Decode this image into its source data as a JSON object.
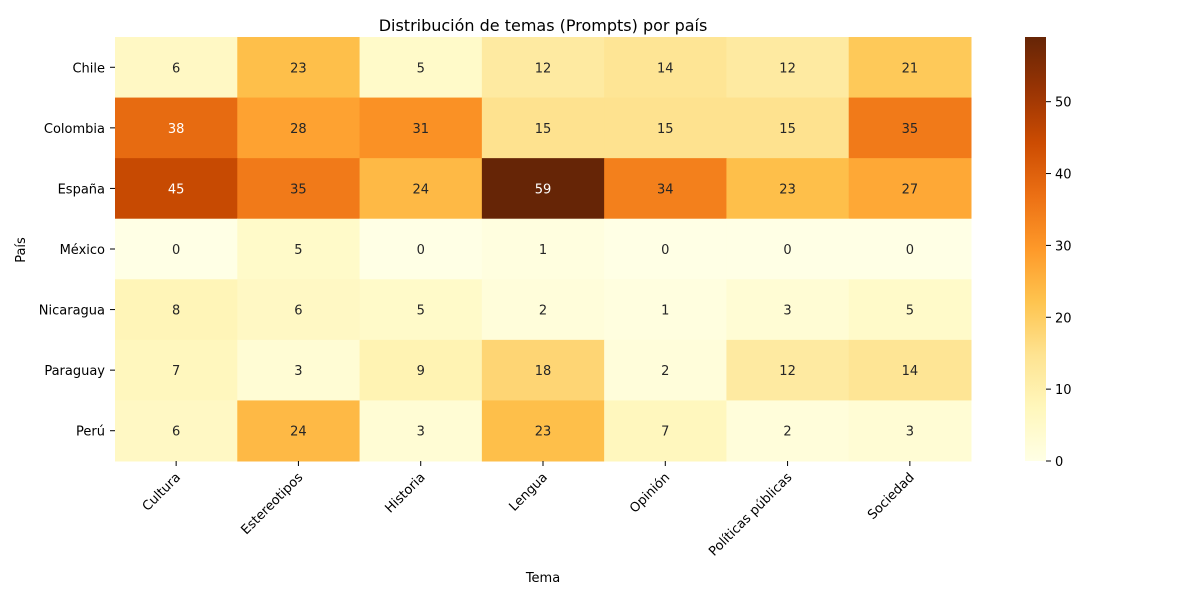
{
  "chart_data": {
    "type": "heatmap",
    "title": "Distribución de temas (Prompts) por país",
    "xlabel": "Tema",
    "ylabel": "País",
    "x_categories": [
      "Cultura",
      "Estereotipos",
      "Historia",
      "Lengua",
      "Opinión",
      "Políticas públicas",
      "Sociedad"
    ],
    "y_categories": [
      "Chile",
      "Colombia",
      "España",
      "México",
      "Nicaragua",
      "Paraguay",
      "Perú"
    ],
    "values": [
      [
        6,
        23,
        5,
        12,
        14,
        12,
        21
      ],
      [
        38,
        28,
        31,
        15,
        15,
        15,
        35
      ],
      [
        45,
        35,
        24,
        59,
        34,
        23,
        27
      ],
      [
        0,
        5,
        0,
        1,
        0,
        0,
        0
      ],
      [
        8,
        6,
        5,
        2,
        1,
        3,
        5
      ],
      [
        7,
        3,
        9,
        18,
        2,
        12,
        14
      ],
      [
        6,
        24,
        3,
        23,
        7,
        2,
        3
      ]
    ],
    "colorbar": {
      "min": 0,
      "max": 59,
      "ticks": [
        0,
        10,
        20,
        30,
        40,
        50
      ],
      "colormap": "YlOrBr",
      "colors": [
        "#ffffe5",
        "#fff7bc",
        "#fee391",
        "#fec44f",
        "#fe9929",
        "#ec7014",
        "#cc4c02",
        "#993404",
        "#662506"
      ]
    },
    "annotation_dark_text": "#262626",
    "annotation_light_text": "#ffffff"
  }
}
